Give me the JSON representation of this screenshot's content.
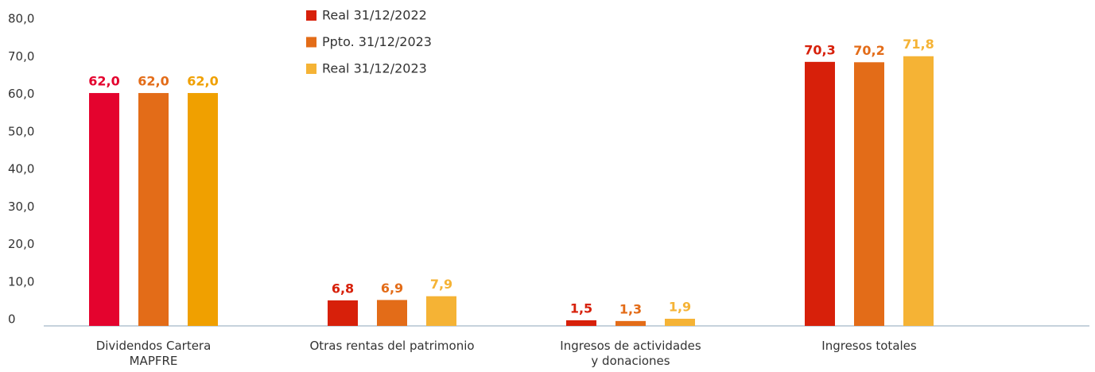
{
  "chart_data": {
    "type": "bar",
    "categories": [
      "Dividendos Cartera\nMAPFRE",
      "Otras rentas del patrimonio",
      "Ingresos de actividades\ny donaciones",
      "Ingresos totales"
    ],
    "series": [
      {
        "name": "Real 31/12/2022",
        "color": "#d7200a",
        "colors": [
          "#e4032e",
          "#d7200a",
          "#d7200a",
          "#d7200a"
        ],
        "values": [
          62.0,
          6.8,
          1.5,
          70.3
        ],
        "value_labels": [
          "62,0",
          "6,8",
          "1,5",
          "70,3"
        ]
      },
      {
        "name": "Ppto. 31/12/2023",
        "color": "#e36c18",
        "colors": [
          "#e36c18",
          "#e36c18",
          "#e36c18",
          "#e36c18"
        ],
        "values": [
          62.0,
          6.9,
          1.3,
          70.2
        ],
        "value_labels": [
          "62,0",
          "6,9",
          "1,3",
          "70,2"
        ]
      },
      {
        "name": "Real 31/12/2023",
        "color": "#f5b335",
        "colors": [
          "#f0a000",
          "#f5b335",
          "#f5b335",
          "#f5b335"
        ],
        "values": [
          62.0,
          7.9,
          1.9,
          71.8
        ],
        "value_labels": [
          "62,0",
          "7,9",
          "1,9",
          "71,8"
        ]
      }
    ],
    "ylim": [
      0,
      80
    ],
    "yticks": [
      0,
      {
        "value": 10,
        "label": "10,0"
      },
      {
        "value": 20,
        "label": "20,0"
      },
      {
        "value": 30,
        "label": "30,0"
      },
      {
        "value": 40,
        "label": "40,0"
      },
      {
        "value": 50,
        "label": "50,0"
      },
      {
        "value": 60,
        "label": "60,0"
      },
      {
        "value": 70,
        "label": "70,0"
      },
      {
        "value": 80,
        "label": "80,0"
      }
    ],
    "grid": false,
    "legend": "top"
  }
}
